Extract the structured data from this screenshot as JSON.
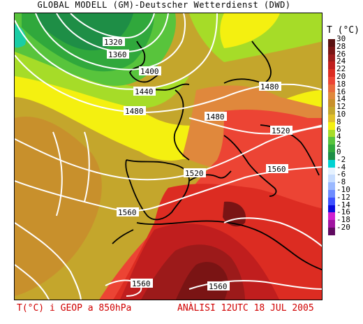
{
  "header": {
    "title": "GLOBAL MODELL (GM)-Deutscher Wetterdienst (DWD)"
  },
  "footer": {
    "left": "T(°C) i GEOP a 850hPa",
    "right": "ANÀLISI 12UTC 18 JUL 2005"
  },
  "legend": {
    "title": "T (°C)",
    "items": [
      {
        "label": "30",
        "color": "#5a1010"
      },
      {
        "label": "28",
        "color": "#7a1414"
      },
      {
        "label": "26",
        "color": "#9c1a1a"
      },
      {
        "label": "24",
        "color": "#c01e1e"
      },
      {
        "label": "22",
        "color": "#dc2c22"
      },
      {
        "label": "20",
        "color": "#ec4434"
      },
      {
        "label": "18",
        "color": "#e86a3c"
      },
      {
        "label": "16",
        "color": "#e0883c"
      },
      {
        "label": "14",
        "color": "#c8902c"
      },
      {
        "label": "12",
        "color": "#c4a62c"
      },
      {
        "label": "10",
        "color": "#e0c028"
      },
      {
        "label": "8",
        "color": "#f4f010"
      },
      {
        "label": "6",
        "color": "#a6dc28"
      },
      {
        "label": "4",
        "color": "#58c43c"
      },
      {
        "label": "2",
        "color": "#30a83c"
      },
      {
        "label": "0",
        "color": "#1e8e46"
      },
      {
        "label": "-2",
        "color": "#00d2d2"
      },
      {
        "label": "-4",
        "color": "#e6f2ff"
      },
      {
        "label": "-6",
        "color": "#c6dcff"
      },
      {
        "label": "-8",
        "color": "#9ab8ff"
      },
      {
        "label": "-10",
        "color": "#6e8cff"
      },
      {
        "label": "-12",
        "color": "#3c50ff"
      },
      {
        "label": "-14",
        "color": "#0a0adc"
      },
      {
        "label": "-16",
        "color": "#d020d0"
      },
      {
        "label": "-18",
        "color": "#a014a0"
      },
      {
        "label": "-20",
        "color": "#600a60"
      }
    ]
  },
  "contours": {
    "labels": [
      "1320",
      "1360",
      "1400",
      "1440",
      "1480",
      "1480",
      "1480",
      "1520",
      "1520",
      "1560",
      "1560",
      "1560",
      "1560"
    ]
  }
}
